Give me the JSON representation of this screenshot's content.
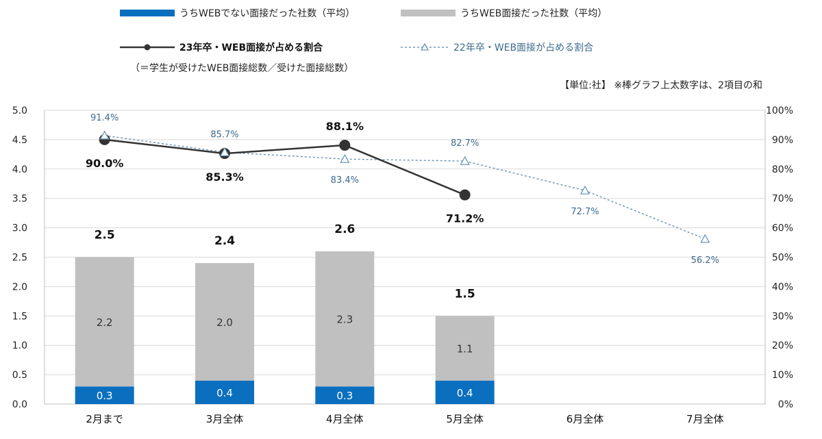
{
  "legend": {
    "non_web": "うちWEBでない面接だった社数（平均）",
    "web": "うちWEB面接だった社数（平均）",
    "line23": "23年卒・WEB面接が占める割合",
    "line23_note": "（＝学生が受けたWEB面接総数／受けた面接総数）",
    "line22": "22年卒・WEB面接が占める割合"
  },
  "unit_note": "【単位:社】 ※棒グラフ上太数字は、2項目の和",
  "colors": {
    "non_web": "#0b6fbf",
    "web": "#c0c0c0",
    "line23": "#333333",
    "line22": "#6f98b8"
  },
  "chart_data": {
    "type": "bar",
    "categories": [
      "2月まで",
      "3月全体",
      "4月全体",
      "5月全体",
      "6月全体",
      "7月全体"
    ],
    "stacked": true,
    "series": [
      {
        "name": "うちWEBでない面接だった社数（平均）",
        "values": [
          0.3,
          0.4,
          0.3,
          0.4,
          null,
          null
        ],
        "labels": [
          "0.3",
          "0.4",
          "0.3",
          "0.4",
          "",
          ""
        ]
      },
      {
        "name": "うちWEB面接だった社数（平均）",
        "values": [
          2.2,
          2.0,
          2.3,
          1.1,
          null,
          null
        ],
        "labels": [
          "2.2",
          "2.0",
          "2.3",
          "1.1",
          "",
          ""
        ]
      }
    ],
    "totals": [
      2.5,
      2.4,
      2.6,
      1.5,
      null,
      null
    ],
    "total_labels": [
      "2.5",
      "2.4",
      "2.6",
      "1.5",
      "",
      ""
    ],
    "lines": [
      {
        "name": "23年卒・WEB面接が占める割合",
        "axis": "right",
        "values": [
          90.0,
          85.3,
          88.1,
          71.2,
          null,
          null
        ],
        "labels": [
          "90.0%",
          "85.3%",
          "88.1%",
          "71.2%",
          "",
          ""
        ],
        "label_pos": [
          "below",
          "below",
          "above",
          "below",
          "",
          ""
        ]
      },
      {
        "name": "22年卒・WEB面接が占める割合",
        "axis": "right",
        "values": [
          91.4,
          85.7,
          83.4,
          82.7,
          72.7,
          56.2
        ],
        "labels": [
          "91.4%",
          "85.7%",
          "83.4%",
          "82.7%",
          "72.7%",
          "56.2%"
        ],
        "label_pos": [
          "above",
          "above",
          "below",
          "above",
          "below",
          "below"
        ]
      }
    ],
    "y_left": {
      "min": 0,
      "max": 5,
      "step": 0.5,
      "tick_labels": [
        "0.0",
        "0.5",
        "1.0",
        "1.5",
        "2.0",
        "2.5",
        "3.0",
        "3.5",
        "4.0",
        "4.5",
        "5.0"
      ]
    },
    "y_right": {
      "min": 0,
      "max": 100,
      "step": 10,
      "tick_labels": [
        "0%",
        "10%",
        "20%",
        "30%",
        "40%",
        "50%",
        "60%",
        "70%",
        "80%",
        "90%",
        "100%"
      ]
    },
    "grid": true,
    "legend_position": "top"
  }
}
